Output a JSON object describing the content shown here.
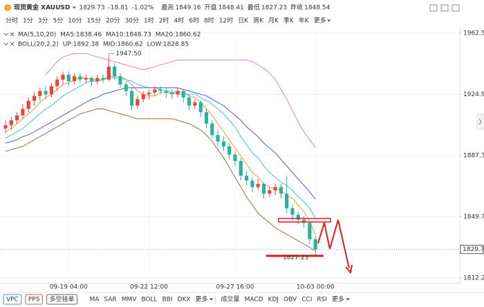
{
  "header": {
    "symbol": "现货黄金 XAUUSD",
    "price": "1829.73",
    "change": "-18.81",
    "change_pct": "-1.02%",
    "stats": [
      {
        "label": "最高",
        "value": "1849.16"
      },
      {
        "label": "开盘",
        "value": "1848.41"
      },
      {
        "label": "最低",
        "value": "1827.23"
      },
      {
        "label": "昨收",
        "value": "1848.54"
      }
    ]
  },
  "timeframes": [
    {
      "label": "分时"
    },
    {
      "label": "1分"
    },
    {
      "label": "3分"
    },
    {
      "label": "5分"
    },
    {
      "label": "10分"
    },
    {
      "label": "15分"
    },
    {
      "label": "20分"
    },
    {
      "label": "30分"
    },
    {
      "label": "1时"
    },
    {
      "label": "2时"
    },
    {
      "label": "4时",
      "selected": true
    },
    {
      "label": "6时"
    },
    {
      "label": "8时"
    },
    {
      "label": "12时"
    },
    {
      "label": "日K"
    },
    {
      "label": "周K"
    },
    {
      "label": "月K"
    },
    {
      "label": "季K"
    },
    {
      "label": "年K"
    },
    {
      "label": "更多"
    }
  ],
  "chart_data": {
    "type": "candlestick",
    "categories": [
      null,
      null,
      null,
      null,
      null,
      null,
      null,
      null,
      null,
      null,
      null,
      "09-19 04:00",
      null,
      null,
      null,
      null,
      null,
      null,
      null,
      null,
      null,
      null,
      null,
      null,
      null,
      "09-22 12:00",
      null,
      null,
      null,
      null,
      null,
      null,
      null,
      null,
      null,
      null,
      null,
      null,
      null,
      null,
      "09-27 16:00",
      null,
      null,
      null,
      null,
      null,
      null,
      null,
      null,
      null,
      null,
      null,
      null,
      null,
      "10-03 00:00"
    ],
    "open": [
      1904,
      1906,
      1909,
      1912,
      1916,
      1921,
      1924,
      1927,
      1925,
      1930,
      1934,
      1937,
      1933,
      1936,
      1934,
      1935,
      1933,
      1935,
      1934,
      1942,
      1936,
      1931,
      1927,
      1918,
      1922,
      1925,
      1926,
      1928,
      1927,
      1926,
      1925,
      1927,
      1923,
      1918,
      1920,
      1914,
      1907,
      1900,
      1896,
      1893,
      1888,
      1884,
      1875,
      1872,
      1868,
      1870,
      1864,
      1866,
      1868,
      1864,
      1855,
      1851,
      1848,
      1846,
      1836
    ],
    "high": [
      1909,
      1911,
      1914,
      1919,
      1923,
      1926,
      1929,
      1930,
      1932,
      1936,
      1939,
      1939,
      1938,
      1938,
      1937,
      1936,
      1937,
      1937,
      1947.5,
      1944,
      1938,
      1933,
      1929,
      1924,
      1927,
      1928,
      1930,
      1930,
      1929,
      1928,
      1929,
      1928,
      1925,
      1922,
      1921,
      1916,
      1909,
      1903,
      1899,
      1895,
      1890,
      1886,
      1878,
      1874,
      1873,
      1871,
      1868,
      1870,
      1870,
      1875,
      1857,
      1853,
      1850,
      1847,
      1838
    ],
    "low": [
      1901,
      1903,
      1907,
      1910,
      1914,
      1918,
      1921,
      1922,
      1923,
      1927,
      1931,
      1930,
      1931,
      1932,
      1932,
      1930,
      1931,
      1932,
      1933,
      1934,
      1929,
      1924,
      1915,
      1916,
      1920,
      1922,
      1924,
      1925,
      1923,
      1922,
      1923,
      1920,
      1915,
      1916,
      1911,
      1904,
      1898,
      1893,
      1890,
      1885,
      1881,
      1872,
      1869,
      1865,
      1866,
      1861,
      1862,
      1863,
      1861,
      1852,
      1848,
      1845,
      1843,
      1833,
      1827.23
    ],
    "close": [
      1906,
      1909,
      1912,
      1916,
      1921,
      1924,
      1927,
      1925,
      1930,
      1934,
      1937,
      1933,
      1936,
      1934,
      1935,
      1933,
      1935,
      1934,
      1942,
      1936,
      1931,
      1927,
      1918,
      1922,
      1925,
      1926,
      1928,
      1927,
      1926,
      1925,
      1927,
      1923,
      1918,
      1920,
      1914,
      1907,
      1900,
      1896,
      1893,
      1888,
      1884,
      1875,
      1872,
      1868,
      1870,
      1864,
      1866,
      1868,
      1864,
      1855,
      1851,
      1848,
      1846,
      1836,
      1829.73
    ],
    "up_color": "#e8463c",
    "down_color": "#27b39c",
    "high_label": {
      "value": 1947.5,
      "label": "1947.50"
    },
    "low_label": 1827.23,
    "last_price": 1829.73,
    "ylim": [
      1808.8,
      1965.9
    ],
    "yticks": [
      1962.53,
      1924.95,
      1887.37,
      1849.78,
      {
        "value": 1812.2,
        "label": "1812.20"
      }
    ],
    "grid": true,
    "indicators": [
      {
        "label": "MA(5,10,20)",
        "lines": [
          {
            "name": "MA5:1838.46",
            "color": "#f0963a",
            "values": [
              1902,
              1904,
              1907,
              1910,
              1913,
              1916,
              1920,
              1923,
              1925,
              1928,
              1931,
              1932,
              1934,
              1935,
              1935,
              1934,
              1934,
              1934,
              1936,
              1936,
              1936,
              1934,
              1931,
              1927,
              1925,
              1924,
              1924,
              1926,
              1926,
              1926,
              1927,
              1926,
              1924,
              1923,
              1920,
              1916,
              1912,
              1907,
              1902,
              1897,
              1892,
              1887,
              1882,
              1877,
              1874,
              1870,
              1868,
              1867,
              1866,
              1863,
              1861,
              1857,
              1853,
              1847,
              1838.46
            ]
          },
          {
            "name": "MA10:1848.73",
            "color": "#3fbfcc",
            "values": [
              1898,
              1900,
              1902,
              1904,
              1907,
              1910,
              1913,
              1916,
              1918,
              1921,
              1924,
              1926,
              1928,
              1930,
              1932,
              1933,
              1933,
              1934,
              1935,
              1935,
              1935,
              1934,
              1933,
              1931,
              1930,
              1929,
              1929,
              1928,
              1927,
              1926,
              1925,
              1925,
              1925,
              1925,
              1923,
              1921,
              1919,
              1916,
              1913,
              1909,
              1905,
              1899,
              1894,
              1889,
              1886,
              1881,
              1877,
              1874,
              1871,
              1869,
              1866,
              1862,
              1859,
              1855,
              1848.73
            ]
          },
          {
            "name": "MA20:1860.62",
            "color": "#b36ade",
            "values": [
              1895,
              1896,
              1897,
              1899,
              1900,
              1902,
              1904,
              1906,
              1908,
              1910,
              1912,
              1914,
              1916,
              1918,
              1920,
              1922,
              1923,
              1925,
              1926,
              1927,
              1928,
              1929,
              1929,
              1929,
              1929,
              1929,
              1929,
              1929,
              1929,
              1929,
              1929,
              1928,
              1927,
              1926,
              1925,
              1924,
              1922,
              1920,
              1918,
              1915,
              1912,
              1909,
              1905,
              1902,
              1899,
              1895,
              1892,
              1889,
              1885,
              1881,
              1877,
              1873,
              1869,
              1865,
              1860.62
            ]
          }
        ]
      },
      {
        "label": "BOLL(20,2,2)",
        "lines": [
          {
            "name": "UP:1892.38",
            "color": "#e07fd0",
            "values": [
              null,
              null,
              null,
              null,
              null,
              null,
              null,
              1937,
              1941,
              1945,
              1948,
              1949,
              1950,
              1950,
              1950,
              1949,
              1948,
              1947,
              1946,
              1945,
              1944,
              1943,
              1942,
              1941,
              1940,
              1941,
              1942,
              1943,
              1944,
              1945,
              1946,
              1946,
              1946,
              1946,
              1946,
              1946,
              1946,
              1946,
              1946,
              1946,
              1946,
              1946,
              1946,
              1945,
              1943,
              1941,
              1938,
              1934,
              1928,
              1922,
              1915,
              1908,
              1902,
              1897,
              1892.38
            ]
          },
          {
            "name": "MID:1860.62",
            "color": "#5570d8",
            "values": [
              1895,
              1896,
              1897,
              1899,
              1900,
              1902,
              1904,
              1906,
              1908,
              1910,
              1912,
              1914,
              1916,
              1918,
              1920,
              1922,
              1923,
              1925,
              1926,
              1927,
              1928,
              1929,
              1929,
              1929,
              1929,
              1929,
              1929,
              1929,
              1929,
              1929,
              1929,
              1928,
              1927,
              1926,
              1925,
              1924,
              1922,
              1920,
              1918,
              1915,
              1912,
              1909,
              1905,
              1902,
              1899,
              1895,
              1892,
              1889,
              1885,
              1881,
              1877,
              1873,
              1869,
              1865,
              1860.62
            ]
          },
          {
            "name": "LOW:1828.85",
            "color": "#a0683c",
            "values": [
              1890,
              1891,
              1892,
              1893,
              1895,
              1897,
              1899,
              1901,
              1903,
              1905,
              1907,
              1909,
              1911,
              1913,
              1914,
              1915,
              1916,
              1916,
              1915,
              1914,
              1913,
              1912,
              1911,
              1910,
              1910,
              1910,
              1910,
              1910,
              1910,
              1910,
              1909,
              1908,
              1907,
              1905,
              1903,
              1900,
              1896,
              1891,
              1886,
              1880,
              1874,
              1868,
              1862,
              1857,
              1852,
              1849,
              1846,
              1843,
              1841,
              1839,
              1837,
              1835,
              1833,
              1831,
              1828.85
            ]
          }
        ]
      }
    ]
  },
  "bottom_bar": {
    "tags": [
      "VPC",
      "PPS",
      "多空挂单"
    ],
    "main_indicators": [
      "MA",
      "SAR",
      "MMV",
      "BOLL",
      "BBI",
      "DKX",
      "更多"
    ],
    "sub_indicators": [
      "成交量",
      "MACD",
      "KDJ",
      "OBV",
      "CCI",
      "RSI",
      "更多"
    ]
  }
}
